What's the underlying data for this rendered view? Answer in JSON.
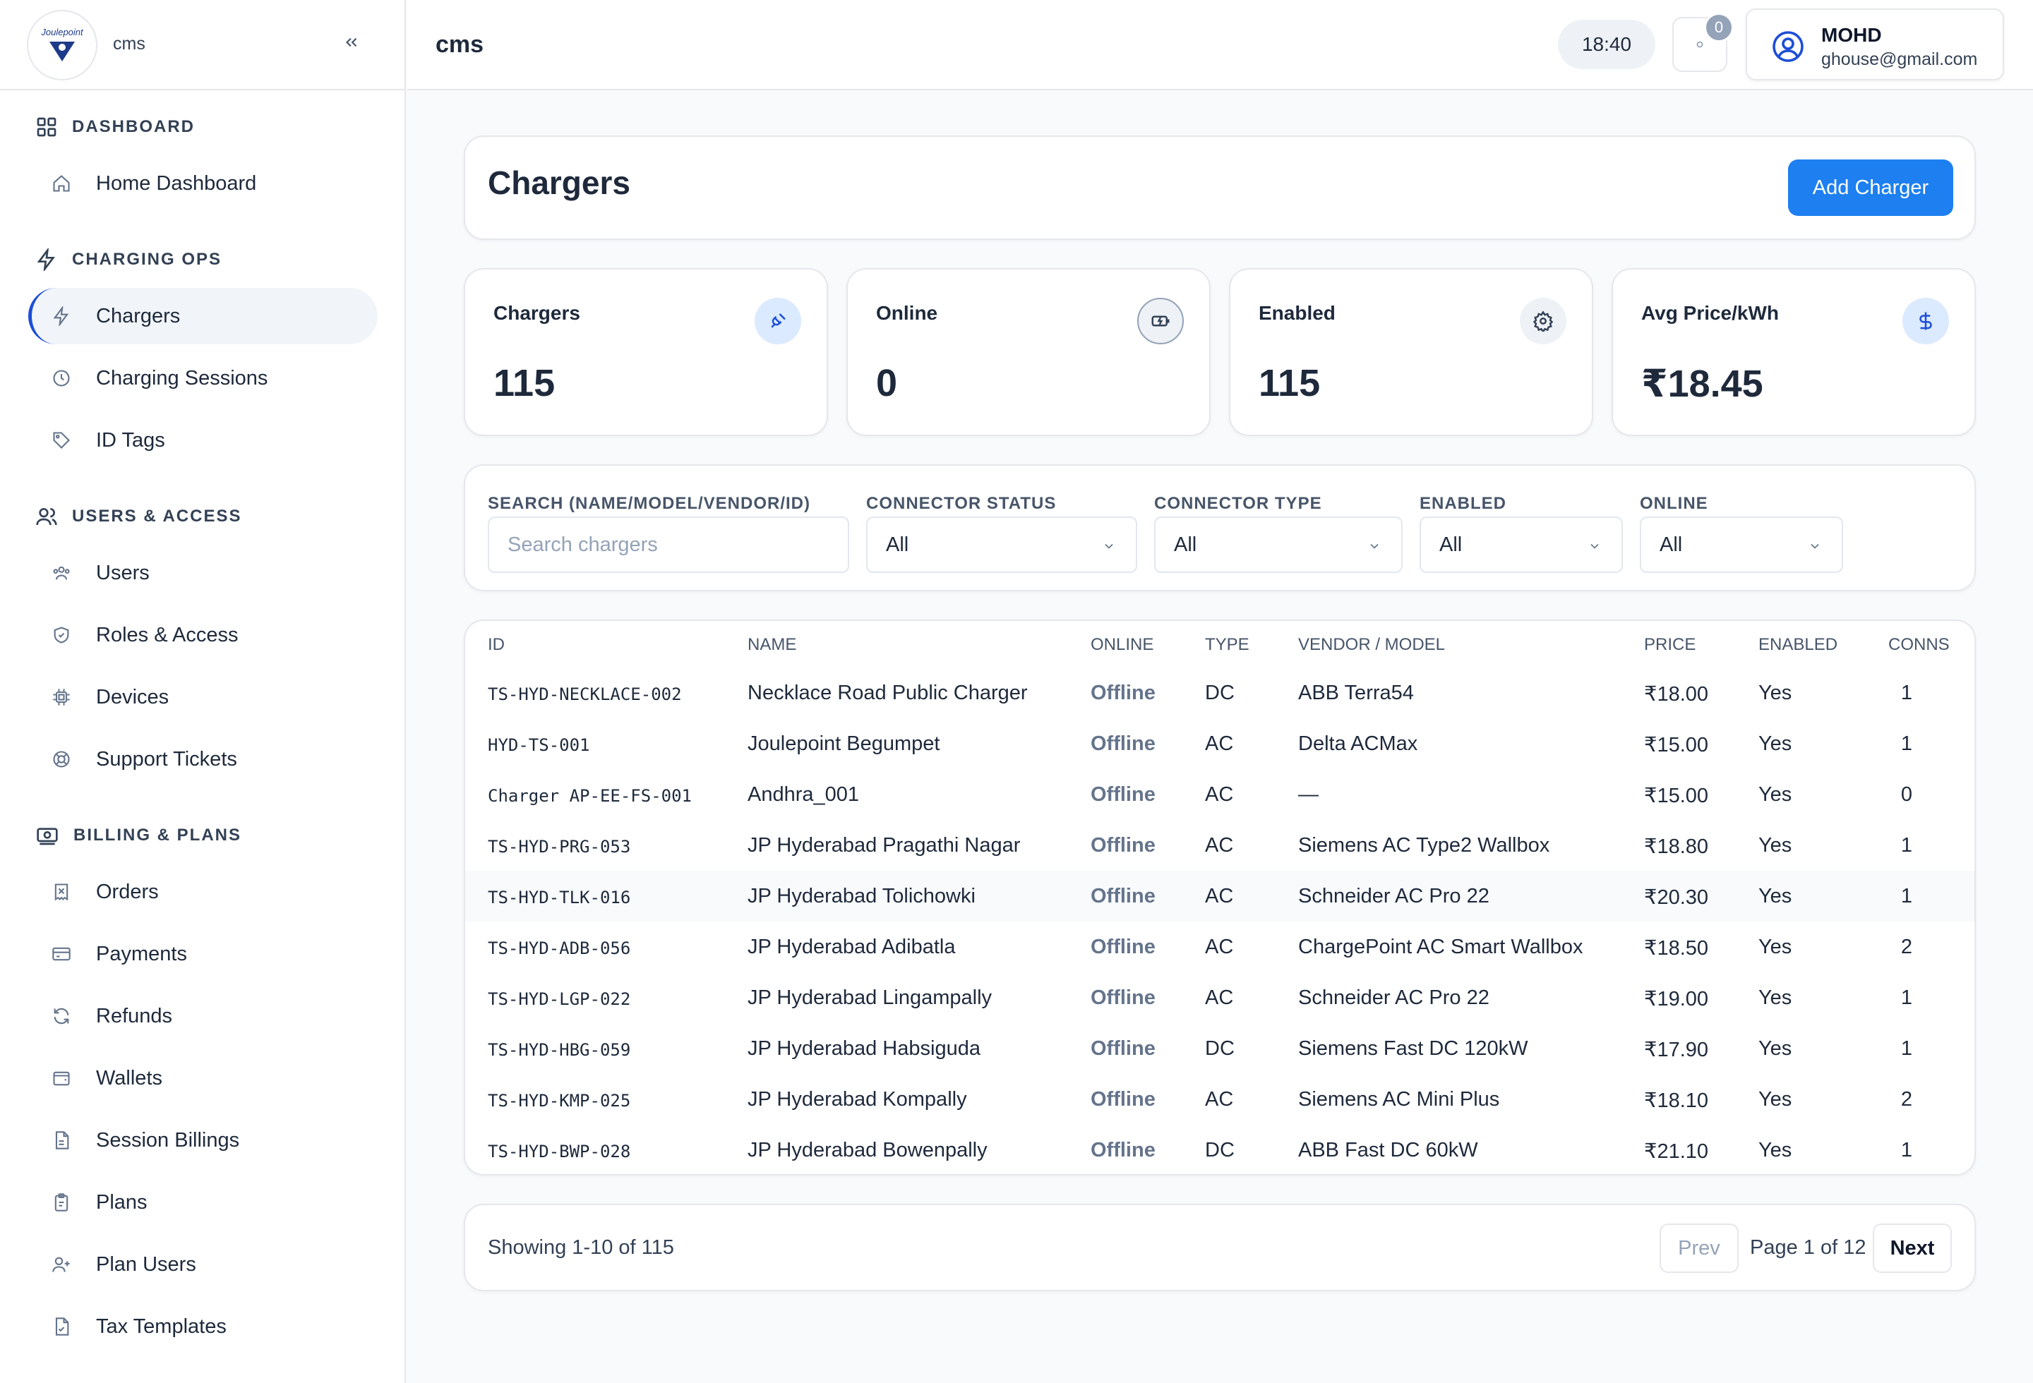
{
  "app": {
    "name": "cms",
    "logo_text": "Joulepoint"
  },
  "sidebar": {
    "sections": [
      {
        "title": "DASHBOARD",
        "items": [
          {
            "label": "Home Dashboard"
          }
        ]
      },
      {
        "title": "CHARGING OPS",
        "items": [
          {
            "label": "Chargers",
            "active": true
          },
          {
            "label": "Charging Sessions"
          },
          {
            "label": "ID Tags"
          }
        ]
      },
      {
        "title": "USERS & ACCESS",
        "items": [
          {
            "label": "Users"
          },
          {
            "label": "Roles & Access"
          },
          {
            "label": "Devices"
          },
          {
            "label": "Support Tickets"
          }
        ]
      },
      {
        "title": "BILLING & PLANS",
        "items": [
          {
            "label": "Orders"
          },
          {
            "label": "Payments"
          },
          {
            "label": "Refunds"
          },
          {
            "label": "Wallets"
          },
          {
            "label": "Session Billings"
          },
          {
            "label": "Plans"
          },
          {
            "label": "Plan Users"
          },
          {
            "label": "Tax Templates"
          }
        ]
      }
    ]
  },
  "topbar": {
    "title": "cms",
    "time": "18:40",
    "notifications": "0",
    "user": {
      "name": "MOHD",
      "email": "ghouse@gmail.com"
    }
  },
  "page": {
    "title": "Chargers",
    "add_button": "Add Charger"
  },
  "stats": [
    {
      "label": "Chargers",
      "value": "115",
      "icon": "plug-icon"
    },
    {
      "label": "Online",
      "value": "0",
      "icon": "battery-charging-icon"
    },
    {
      "label": "Enabled",
      "value": "115",
      "icon": "gear-icon"
    },
    {
      "label": "Avg Price/kWh",
      "value": "₹18.45",
      "icon": "dollar-icon"
    }
  ],
  "filters": {
    "search": {
      "label": "SEARCH (NAME/MODEL/VENDOR/ID)",
      "placeholder": "Search chargers"
    },
    "connector_status": {
      "label": "CONNECTOR STATUS",
      "value": "All"
    },
    "connector_type": {
      "label": "CONNECTOR TYPE",
      "value": "All"
    },
    "enabled": {
      "label": "ENABLED",
      "value": "All"
    },
    "online": {
      "label": "ONLINE",
      "value": "All"
    }
  },
  "table": {
    "headers": [
      "ID",
      "NAME",
      "ONLINE",
      "TYPE",
      "VENDOR / MODEL",
      "PRICE",
      "ENABLED",
      "CONNS"
    ],
    "rows": [
      [
        "TS-HYD-NECKLACE-002",
        "Necklace Road Public Charger",
        "Offline",
        "DC",
        "ABB Terra54",
        "₹18.00",
        "Yes",
        "1"
      ],
      [
        "HYD-TS-001",
        "Joulepoint Begumpet",
        "Offline",
        "AC",
        "Delta ACMax",
        "₹15.00",
        "Yes",
        "1"
      ],
      [
        "Charger AP-EE-FS-001",
        "Andhra_001",
        "Offline",
        "AC",
        "—",
        "₹15.00",
        "Yes",
        "0"
      ],
      [
        "TS-HYD-PRG-053",
        "JP Hyderabad Pragathi Nagar",
        "Offline",
        "AC",
        "Siemens AC Type2 Wallbox",
        "₹18.80",
        "Yes",
        "1"
      ],
      [
        "TS-HYD-TLK-016",
        "JP Hyderabad Tolichowki",
        "Offline",
        "AC",
        "Schneider AC Pro 22",
        "₹20.30",
        "Yes",
        "1"
      ],
      [
        "TS-HYD-ADB-056",
        "JP Hyderabad Adibatla",
        "Offline",
        "AC",
        "ChargePoint AC Smart Wallbox",
        "₹18.50",
        "Yes",
        "2"
      ],
      [
        "TS-HYD-LGP-022",
        "JP Hyderabad Lingampally",
        "Offline",
        "AC",
        "Schneider AC Pro 22",
        "₹19.00",
        "Yes",
        "1"
      ],
      [
        "TS-HYD-HBG-059",
        "JP Hyderabad Habsiguda",
        "Offline",
        "DC",
        "Siemens Fast DC 120kW",
        "₹17.90",
        "Yes",
        "1"
      ],
      [
        "TS-HYD-KMP-025",
        "JP Hyderabad Kompally",
        "Offline",
        "AC",
        "Siemens AC Mini Plus",
        "₹18.10",
        "Yes",
        "2"
      ],
      [
        "TS-HYD-BWP-028",
        "JP Hyderabad Bowenpally",
        "Offline",
        "DC",
        "ABB Fast DC 60kW",
        "₹21.10",
        "Yes",
        "1"
      ]
    ]
  },
  "pagination": {
    "showing": "Showing 1-10 of 115",
    "prev": "Prev",
    "page": "Page 1 of 12",
    "next": "Next"
  },
  "colors": {
    "accent": "#1d7ff0",
    "active_border": "#1d4ed8",
    "muted": "#64748b"
  }
}
